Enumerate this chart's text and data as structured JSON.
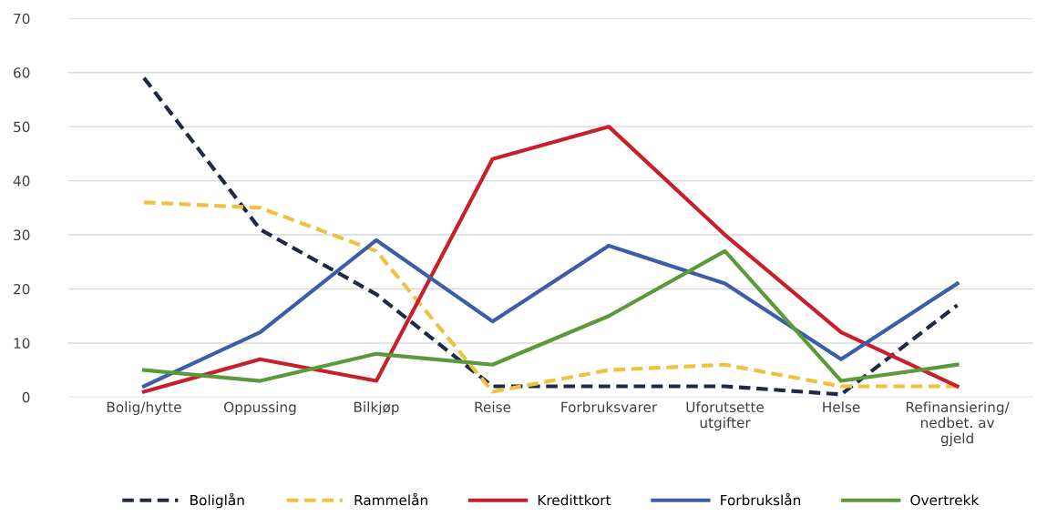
{
  "chart_data": {
    "type": "line",
    "categories": [
      "Bolig/hytte",
      "Oppussing",
      "Bilkjøp",
      "Reise",
      "Forbruksvarer",
      "Uforutsette\nutgifter",
      "Helse",
      "Refinansiering/\nnedbet. av\ngjeld"
    ],
    "series": [
      {
        "name": "Boliglån",
        "color": "#1f2a44",
        "line_style": "dashed",
        "values": [
          59,
          31,
          19,
          2,
          2,
          2,
          0.5,
          17
        ]
      },
      {
        "name": "Rammelån",
        "color": "#f0c040",
        "line_style": "dashed",
        "values": [
          36,
          35,
          27,
          1,
          5,
          6,
          2,
          2
        ]
      },
      {
        "name": "Kredittkort",
        "color": "#c8202a",
        "line_style": "solid",
        "values": [
          1,
          7,
          3,
          44,
          50,
          30,
          12,
          2
        ]
      },
      {
        "name": "Forbrukslån",
        "color": "#3a5fa8",
        "line_style": "solid",
        "values": [
          2,
          12,
          29,
          14,
          28,
          21,
          7,
          21
        ]
      },
      {
        "name": "Overtrekk",
        "color": "#5a9a3a",
        "line_style": "solid",
        "values": [
          5,
          3,
          8,
          6,
          15,
          27,
          3,
          6
        ]
      }
    ],
    "ylim": [
      0,
      70
    ],
    "yticks": [
      0,
      10,
      20,
      30,
      40,
      50,
      60,
      70
    ],
    "grid": "y",
    "legend": "bottom"
  }
}
